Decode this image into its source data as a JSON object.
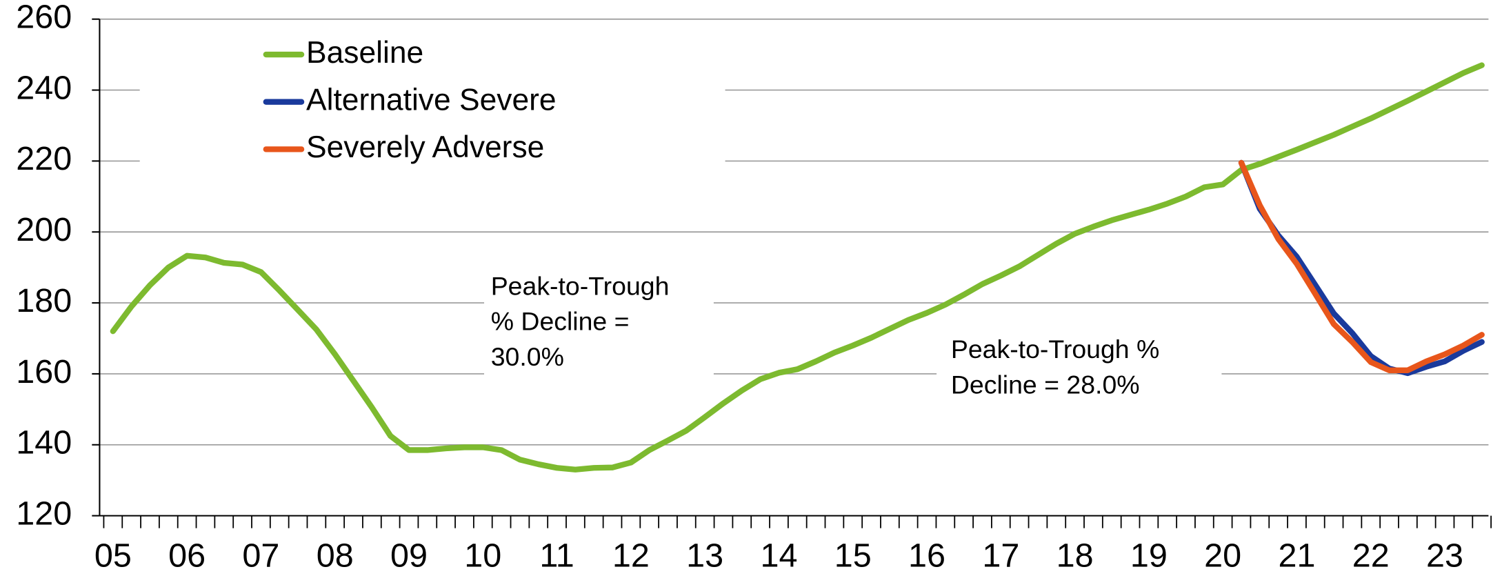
{
  "chart_data": {
    "type": "line",
    "categories": [
      "05",
      null,
      null,
      null,
      "06",
      null,
      null,
      null,
      "07",
      null,
      null,
      null,
      "08",
      null,
      null,
      null,
      "09",
      null,
      null,
      null,
      "10",
      null,
      null,
      null,
      "11",
      null,
      null,
      null,
      "12",
      null,
      null,
      null,
      "13",
      null,
      null,
      null,
      "14",
      null,
      null,
      null,
      "15",
      null,
      null,
      null,
      "16",
      null,
      null,
      null,
      "17",
      null,
      null,
      null,
      "18",
      null,
      null,
      null,
      "19",
      null,
      null,
      null,
      "20",
      null,
      null,
      null,
      "21",
      null,
      null,
      null,
      "22",
      null,
      null,
      null,
      "23",
      null,
      null
    ],
    "series": [
      {
        "name": "Baseline",
        "color": "#7dba2f",
        "values": [
          172,
          179,
          185,
          190,
          193.3,
          192.8,
          191.3,
          190.8,
          188.7,
          183.5,
          178,
          172.5,
          165.5,
          158,
          150.5,
          142.5,
          138.5,
          138.5,
          139,
          139.3,
          139.3,
          138.5,
          135.8,
          134.5,
          133.5,
          133,
          133.5,
          133.6,
          135,
          138.5,
          141.2,
          144,
          147.8,
          151.7,
          155.3,
          158.5,
          160.3,
          161.3,
          163.5,
          166,
          168,
          170.2,
          172.7,
          175.2,
          177.2,
          179.5,
          182.3,
          185.3,
          187.7,
          190.3,
          193.5,
          196.7,
          199.5,
          201.5,
          203.3,
          204.8,
          206.3,
          208,
          210,
          212.6,
          213.4,
          217.5,
          219.2,
          221.2,
          223.2,
          225.3,
          227.4,
          229.7,
          232,
          234.5,
          237,
          239.6,
          242.2,
          244.8,
          247
        ]
      },
      {
        "name": "Alternative Severe",
        "color": "#1a3a9c",
        "values": [
          null,
          null,
          null,
          null,
          null,
          null,
          null,
          null,
          null,
          null,
          null,
          null,
          null,
          null,
          null,
          null,
          null,
          null,
          null,
          null,
          null,
          null,
          null,
          null,
          null,
          null,
          null,
          null,
          null,
          null,
          null,
          null,
          null,
          null,
          null,
          null,
          null,
          null,
          null,
          null,
          null,
          null,
          null,
          null,
          null,
          null,
          null,
          null,
          null,
          null,
          null,
          null,
          null,
          null,
          null,
          null,
          null,
          null,
          null,
          null,
          null,
          219.5,
          206.5,
          199,
          193,
          185,
          177,
          171.5,
          165,
          161.5,
          160.2,
          162,
          163.5,
          166.5,
          169
        ]
      },
      {
        "name": "Severely Adverse",
        "color": "#e8561b",
        "values": [
          null,
          null,
          null,
          null,
          null,
          null,
          null,
          null,
          null,
          null,
          null,
          null,
          null,
          null,
          null,
          null,
          null,
          null,
          null,
          null,
          null,
          null,
          null,
          null,
          null,
          null,
          null,
          null,
          null,
          null,
          null,
          null,
          null,
          null,
          null,
          null,
          null,
          null,
          null,
          null,
          null,
          null,
          null,
          null,
          null,
          null,
          null,
          null,
          null,
          null,
          null,
          null,
          null,
          null,
          null,
          null,
          null,
          null,
          null,
          null,
          null,
          219.5,
          207.5,
          198,
          191,
          182.5,
          174,
          169,
          163.3,
          161,
          161,
          163.5,
          165.5,
          168,
          171
        ]
      }
    ],
    "ylim": [
      120,
      260
    ],
    "yticks": [
      120,
      140,
      160,
      180,
      200,
      220,
      240,
      260
    ],
    "grid": true,
    "annotations": [
      [
        "Peak-to-Trough",
        "% Decline =",
        "30.0%"
      ],
      [
        "Peak-to-Trough %",
        "Decline = 28.0%"
      ]
    ]
  }
}
